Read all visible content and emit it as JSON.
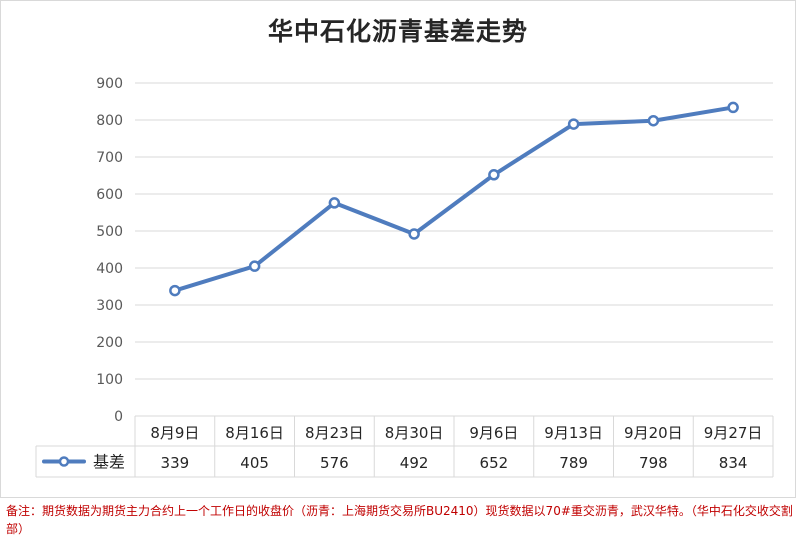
{
  "chart_data": {
    "type": "line",
    "title": "华中石化沥青基差走势",
    "categories": [
      "8月9日",
      "8月16日",
      "8月23日",
      "8月30日",
      "9月6日",
      "9月13日",
      "9月20日",
      "9月27日"
    ],
    "series": [
      {
        "name": "基差",
        "values": [
          339,
          405,
          576,
          492,
          652,
          789,
          798,
          834
        ]
      }
    ],
    "yticks": [
      "0",
      "100",
      "200",
      "300",
      "400",
      "500",
      "600",
      "700",
      "800",
      "900"
    ],
    "ylim": [
      0,
      900
    ],
    "grid": true,
    "legend": "data-table-left",
    "data_table": true,
    "colors": {
      "line": "#4f7cbe",
      "marker_fill": "#ffffff",
      "grid": "#d9d9d9",
      "axis_text": "#595959"
    }
  },
  "note": "备注：期货数据为期货主力合约上一个工作日的收盘价（沥青：上海期货交易所BU2410）现货数据以70#重交沥青，武汉华特。（华中石化交收交割部）"
}
